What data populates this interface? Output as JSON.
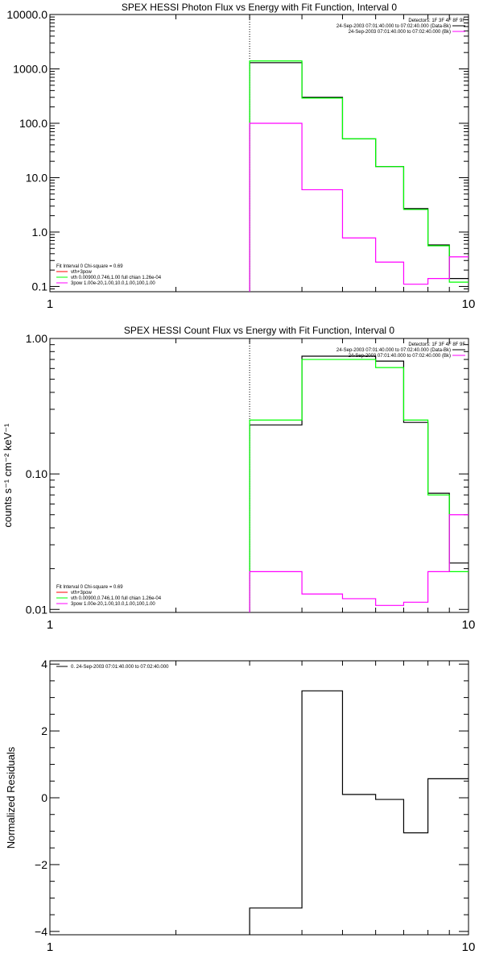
{
  "colors": {
    "black": "#000000",
    "green": "#00ff00",
    "magenta": "#ff00ff",
    "red": "#ff0000",
    "axis": "#000000"
  },
  "chart_data": [
    {
      "type": "line",
      "title": "SPEX HESSI Photon Flux vs Energy with Fit Function, Interval 0",
      "xlabel": "",
      "ylabel": "",
      "xscale": "log",
      "yscale": "log",
      "xlim": [
        1,
        10
      ],
      "ylim": [
        0.08,
        10000
      ],
      "x_ticks": [
        {
          "v": 1,
          "label": "1"
        },
        {
          "v": 10,
          "label": "10"
        }
      ],
      "y_ticks": [
        {
          "v": 0.1,
          "label": "0.1"
        },
        {
          "v": 1,
          "label": "1.0"
        },
        {
          "v": 10,
          "label": "10.0"
        },
        {
          "v": 100,
          "label": "100.0"
        },
        {
          "v": 1000,
          "label": "1000.0"
        },
        {
          "v": 10000,
          "label": "10000.0"
        }
      ],
      "vline": 3.0,
      "legend_top": [
        "Detectors: 1F 3F 4F 8F 9F",
        "24-Sep-2003 07:01:40.000 to 07:02:40.000 (Data-Bk)",
        "24-Sep-2003 07:01:40.000 to 07:02:40.000 (Bk)"
      ],
      "legend_top_colors": [
        "#000000",
        "#000000",
        "#ff00ff"
      ],
      "legend_bottom": [
        "Fit Interval 0   Chi-square = 0.69",
        "vth+3pow",
        "vth 0.00900,0.746,1.00  full chian 1.26e-04",
        "3pow 1.00e-20,1.00,10.0,1.00,100,1.00"
      ],
      "legend_bottom_colors": [
        "#000000",
        "#ff0000",
        "#00ff00",
        "#ff00ff"
      ],
      "edges": [
        3.0,
        4.0,
        5.0,
        6.0,
        7.0,
        8.0,
        9.0,
        10.0
      ],
      "series": [
        {
          "name": "24-Sep-2003 07:01:40.000 to 07:02:40.000 (Data-Bk)",
          "color": "#000000",
          "values": [
            1300,
            300,
            52,
            16,
            2.7,
            0.58,
            0.14
          ]
        },
        {
          "name": "vth+3pow",
          "color": "#00ff00",
          "values": [
            1400,
            290,
            52,
            16,
            2.6,
            0.56,
            0.12
          ]
        },
        {
          "name": "24-Sep-2003 07:01:40.000 to 07:02:40.000 (Bk)",
          "color": "#ff00ff",
          "values": [
            100,
            6,
            0.78,
            0.28,
            0.11,
            0.14,
            0.35
          ]
        }
      ]
    },
    {
      "type": "line",
      "title": "SPEX HESSI Count Flux vs Energy with Fit Function, Interval 0",
      "xlabel": "",
      "ylabel": "counts s⁻¹ cm⁻² keV⁻¹",
      "xscale": "log",
      "yscale": "log",
      "xlim": [
        1,
        10
      ],
      "ylim": [
        0.0095,
        1.0
      ],
      "x_ticks": [
        {
          "v": 1,
          "label": "1"
        },
        {
          "v": 10,
          "label": "10"
        }
      ],
      "y_ticks": [
        {
          "v": 0.01,
          "label": "0.01"
        },
        {
          "v": 0.1,
          "label": "0.10"
        },
        {
          "v": 1,
          "label": "1.00"
        }
      ],
      "vline": 3.0,
      "legend_top": [
        "Detectors: 1F 3F 4F 8F 9F",
        "24-Sep-2003 07:01:40.000 to 07:02:40.000 (Data-Bk)",
        "24-Sep-2003 07:01:40.000 to 07:02:40.000 (Bk)"
      ],
      "legend_top_colors": [
        "#000000",
        "#000000",
        "#ff00ff"
      ],
      "legend_bottom": [
        "Fit Interval 0   Chi-square = 0.69",
        "vth+3pow",
        "vth 0.00900,0.746,1.00  full chian 1.26e-04",
        "3pow 1.00e-20,1.00,10.0,1.00,100,1.00"
      ],
      "legend_bottom_colors": [
        "#000000",
        "#ff0000",
        "#00ff00",
        "#ff00ff"
      ],
      "edges": [
        3.0,
        4.0,
        5.0,
        6.0,
        7.0,
        8.0,
        9.0,
        10.0
      ],
      "series": [
        {
          "name": "24-Sep-2003 07:01:40.000 to 07:02:40.000 (Data-Bk)",
          "color": "#000000",
          "values": [
            0.23,
            0.74,
            0.74,
            0.68,
            0.24,
            0.072,
            0.022
          ]
        },
        {
          "name": "vth+3pow",
          "color": "#00ff00",
          "values": [
            0.25,
            0.7,
            0.7,
            0.61,
            0.25,
            0.07,
            0.019
          ]
        },
        {
          "name": "24-Sep-2003 07:01:40.000 to 07:02:40.000 (Bk)",
          "color": "#ff00ff",
          "values": [
            0.019,
            0.013,
            0.012,
            0.0107,
            0.0113,
            0.019,
            0.05
          ]
        }
      ]
    },
    {
      "type": "line",
      "title": "",
      "xlabel": "",
      "ylabel": "Normalized Residuals",
      "xscale": "log",
      "yscale": "linear",
      "xlim": [
        1,
        10
      ],
      "ylim": [
        -4.1,
        4.1
      ],
      "x_ticks": [
        {
          "v": 1,
          "label": "1"
        },
        {
          "v": 10,
          "label": "10"
        }
      ],
      "y_ticks": [
        {
          "v": -4,
          "label": "−4"
        },
        {
          "v": -2,
          "label": "−2"
        },
        {
          "v": 0,
          "label": "0"
        },
        {
          "v": 2,
          "label": "2"
        },
        {
          "v": 4,
          "label": "4"
        }
      ],
      "legend_top": [
        "0. 24-Sep-2003 07:01:40.000 to 07:02:40.000"
      ],
      "legend_top_colors": [
        "#000000"
      ],
      "edges": [
        3.0,
        4.0,
        5.0,
        6.0,
        7.0,
        8.0,
        10.0
      ],
      "series": [
        {
          "name": "0. 24-Sep-2003 07:01:40.000 to 07:02:40.000",
          "color": "#000000",
          "values": [
            -3.3,
            3.2,
            0.1,
            -0.05,
            -1.05,
            0.57
          ]
        }
      ]
    }
  ]
}
